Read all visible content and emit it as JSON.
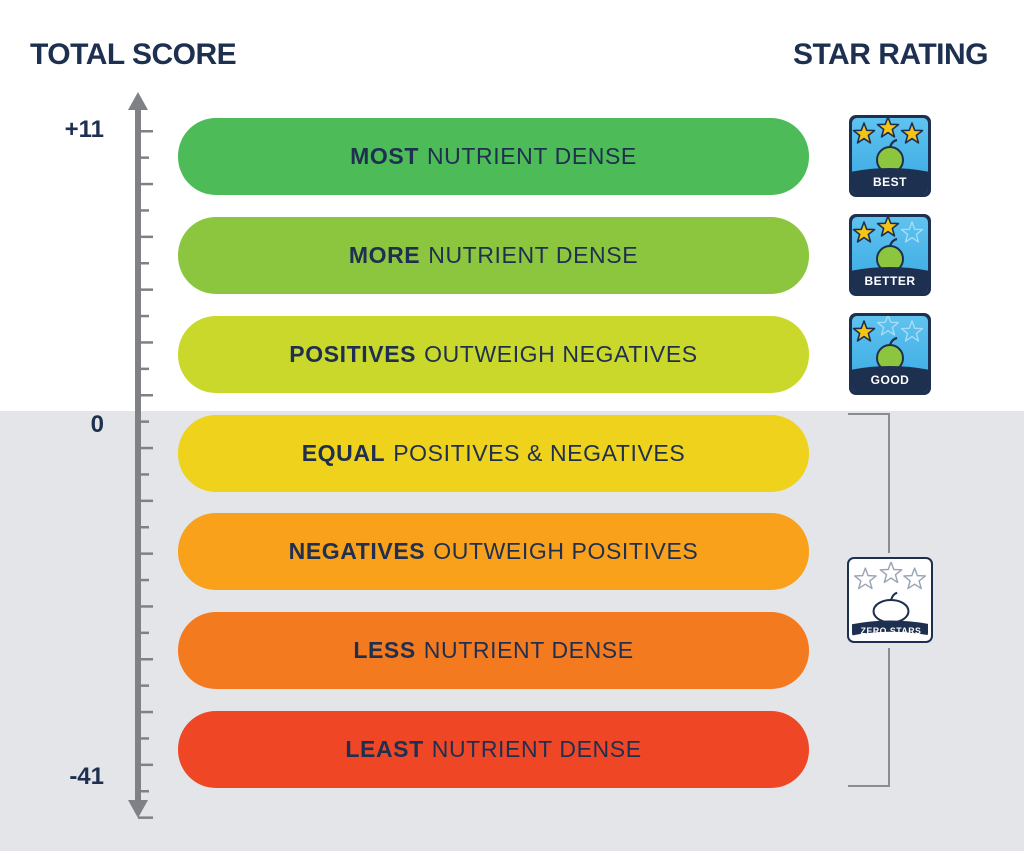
{
  "headers": {
    "total_score": "TOTAL SCORE",
    "star_rating": "STAR RATING"
  },
  "axis": {
    "top_label": "+11",
    "zero_label": "0",
    "bottom_label": "-41"
  },
  "tiers": [
    {
      "bold": "MOST",
      "rest": "NUTRIENT DENSE",
      "color": "#4cbb58"
    },
    {
      "bold": "MORE",
      "rest": "NUTRIENT DENSE",
      "color": "#8cc63f"
    },
    {
      "bold": "POSITIVES",
      "rest": "OUTWEIGH NEGATIVES",
      "color": "#c9d82b"
    },
    {
      "bold": "EQUAL",
      "rest": "POSITIVES & NEGATIVES",
      "color": "#eed21c"
    },
    {
      "bold": "NEGATIVES",
      "rest": "OUTWEIGH POSITIVES",
      "color": "#f9a11b"
    },
    {
      "bold": "LESS",
      "rest": "NUTRIENT DENSE",
      "color": "#f47a20"
    },
    {
      "bold": "LEAST",
      "rest": "NUTRIENT DENSE",
      "color": "#ef4726"
    }
  ],
  "badges": [
    {
      "label": "BEST",
      "stars_filled": 3,
      "stars_total": 3,
      "icon": "apple-icon"
    },
    {
      "label": "BETTER",
      "stars_filled": 2,
      "stars_total": 3,
      "icon": "apple-icon"
    },
    {
      "label": "GOOD",
      "stars_filled": 1,
      "stars_total": 3,
      "icon": "apple-icon"
    },
    {
      "label": "ZERO STARS",
      "stars_filled": 0,
      "stars_total": 3,
      "icon": "apple-outline-icon"
    }
  ]
}
